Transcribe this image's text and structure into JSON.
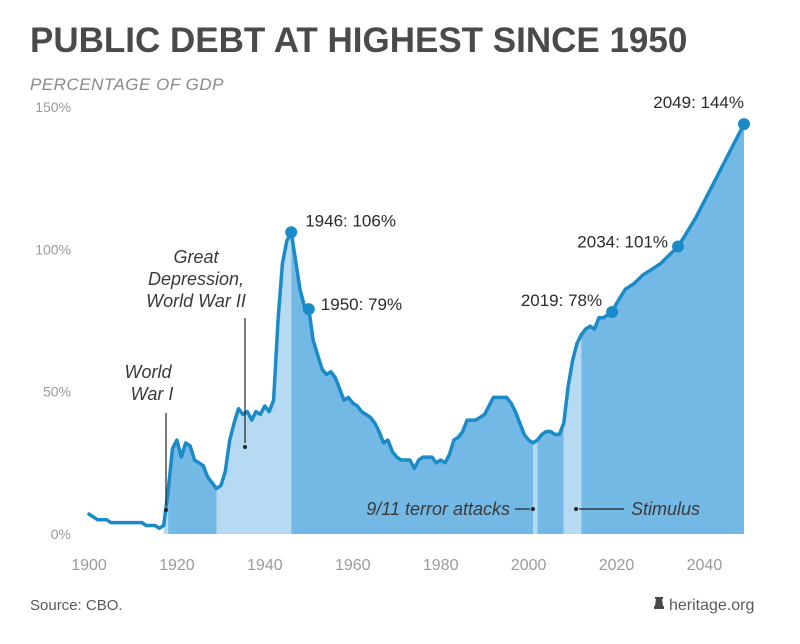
{
  "title": "PUBLIC DEBT AT HIGHEST SINCE 1950",
  "subtitle": "PERCENTAGE OF GDP",
  "source": "Source: CBO.",
  "brand": "heritage.org",
  "colors": {
    "line": "#1a8bc6",
    "area_dark": "#74b9e5",
    "area_light": "#b6daf2",
    "point": "#1a8bc6",
    "text_dark": "#2b2b2b",
    "axis_text": "#9a9a9a"
  },
  "chart_data": {
    "type": "area",
    "title": "PUBLIC DEBT AT HIGHEST SINCE 1950",
    "ylabel": "PERCENTAGE OF GDP",
    "xlabel": "",
    "xlim": [
      1900,
      2049
    ],
    "ylim": [
      0,
      150
    ],
    "yticks": [
      0,
      50,
      100,
      150
    ],
    "ytick_labels": [
      "0%",
      "50%",
      "100%",
      "150%"
    ],
    "xticks": [
      1900,
      1920,
      1940,
      1960,
      1980,
      2000,
      2020,
      2040
    ],
    "xtick_labels": [
      "1900",
      "1920",
      "1940",
      "1960",
      "1980",
      "2000",
      "2020",
      "2040"
    ],
    "grid": false,
    "series": [
      {
        "x": [
          1900,
          1902,
          1904,
          1905,
          1908,
          1910,
          1912,
          1913,
          1915,
          1916,
          1917,
          1918,
          1919,
          1920,
          1921,
          1922,
          1923,
          1924,
          1926,
          1927,
          1929,
          1930,
          1931,
          1932,
          1933,
          1934,
          1935,
          1936,
          1937,
          1938,
          1939,
          1940,
          1941,
          1942,
          1943,
          1944,
          1945,
          1946,
          1947,
          1948,
          1949,
          1950,
          1951,
          1952,
          1953,
          1954,
          1955,
          1956,
          1957,
          1958,
          1959,
          1960,
          1961,
          1962,
          1963,
          1964,
          1965,
          1966,
          1967,
          1968,
          1969,
          1970,
          1971,
          1972,
          1973,
          1974,
          1975,
          1976,
          1977,
          1978,
          1979,
          1980,
          1981,
          1982,
          1983,
          1984,
          1985,
          1986,
          1987,
          1988,
          1989,
          1990,
          1991,
          1992,
          1993,
          1994,
          1995,
          1996,
          1997,
          1998,
          1999,
          2000,
          2001,
          2002,
          2003,
          2004,
          2005,
          2006,
          2007,
          2008,
          2009,
          2010,
          2011,
          2012,
          2013,
          2014,
          2015,
          2016,
          2017,
          2018,
          2019,
          2020,
          2022,
          2024,
          2026,
          2028,
          2030,
          2032,
          2034,
          2036,
          2038,
          2040,
          2042,
          2044,
          2046,
          2048,
          2049
        ],
        "y": [
          7,
          5,
          5,
          4,
          4,
          4,
          4,
          3,
          3,
          2,
          3,
          15,
          30,
          33,
          27,
          32,
          31,
          26,
          24,
          20,
          16,
          17,
          22,
          33,
          39,
          44,
          42,
          43,
          40,
          43,
          42,
          45,
          43,
          47,
          75,
          95,
          103,
          106,
          96,
          86,
          80,
          79,
          68,
          63,
          58,
          56,
          57,
          55,
          51,
          47,
          48,
          46,
          45,
          43,
          42,
          41,
          39,
          36,
          32,
          33,
          29,
          27,
          26,
          26,
          26,
          23,
          26,
          27,
          27,
          27,
          25,
          26,
          25,
          28,
          33,
          34,
          36,
          40,
          40,
          40,
          41,
          42,
          45,
          48,
          48,
          48,
          48,
          46,
          43,
          39,
          35,
          33,
          32,
          33,
          35,
          36,
          36,
          35,
          35,
          39,
          52,
          61,
          67,
          70,
          72,
          73,
          72,
          76,
          76,
          77,
          78,
          81,
          86,
          88,
          91,
          93,
          95,
          98,
          101,
          106,
          111,
          117,
          123,
          129,
          135,
          141,
          144
        ]
      }
    ],
    "shaded_periods": [
      {
        "start": 1917,
        "end": 1918,
        "tone": "light"
      },
      {
        "start": 1918,
        "end": 1929,
        "tone": "dark"
      },
      {
        "start": 1929,
        "end": 1946,
        "tone": "light"
      },
      {
        "start": 1946,
        "end": 2001,
        "tone": "dark"
      },
      {
        "start": 2001,
        "end": 2002,
        "tone": "light"
      },
      {
        "start": 2002,
        "end": 2008,
        "tone": "dark"
      },
      {
        "start": 2008,
        "end": 2012,
        "tone": "light"
      },
      {
        "start": 2012,
        "end": 2049,
        "tone": "dark"
      }
    ],
    "points": [
      {
        "x": 1946,
        "y": 106,
        "label": "1946: 106%"
      },
      {
        "x": 1950,
        "y": 79,
        "label": "1950: 79%"
      },
      {
        "x": 2019,
        "y": 78,
        "label": "2019: 78%"
      },
      {
        "x": 2034,
        "y": 101,
        "label": "2034: 101%"
      },
      {
        "x": 2049,
        "y": 144,
        "label": "2049: 144%"
      }
    ],
    "annotations": [
      {
        "text": [
          "World",
          "War I"
        ],
        "x": 1918
      },
      {
        "text": [
          "Great",
          "Depression,",
          "World War II"
        ],
        "x": 1935
      },
      {
        "text": [
          "9/11 terror attacks"
        ],
        "x": 2001
      },
      {
        "text": [
          "Stimulus"
        ],
        "x": 2010
      }
    ]
  }
}
